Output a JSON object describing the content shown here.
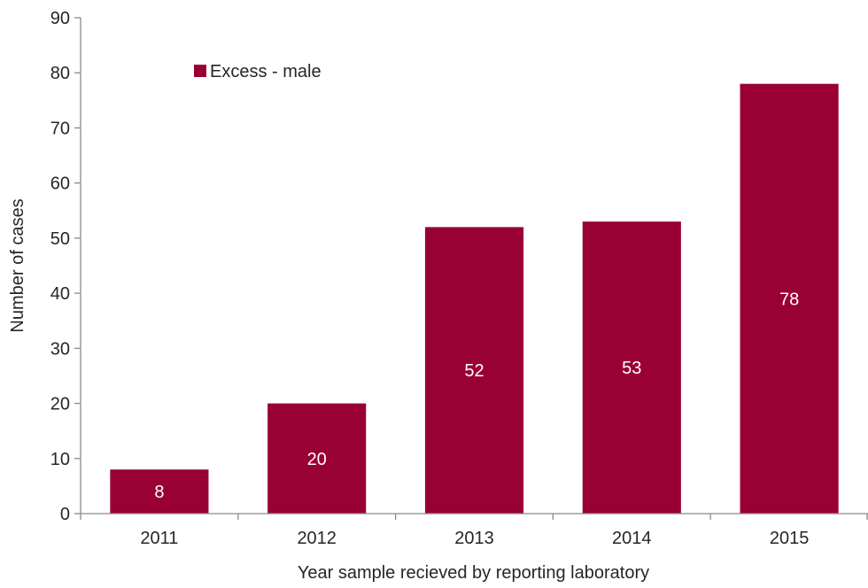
{
  "chart_data": {
    "type": "bar",
    "categories": [
      "2011",
      "2012",
      "2013",
      "2014",
      "2015"
    ],
    "series": [
      {
        "name": "Excess - male",
        "values": [
          8,
          20,
          52,
          53,
          78
        ]
      }
    ],
    "xlabel": "Year sample recieved by reporting laboratory",
    "ylabel": "Number of cases",
    "ylim": [
      0,
      90
    ],
    "yticks": [
      0,
      10,
      20,
      30,
      40,
      50,
      60,
      70,
      80,
      90
    ],
    "grid": false,
    "legend_position": "top-left",
    "bar_color": "#990033",
    "data_labels": true
  }
}
